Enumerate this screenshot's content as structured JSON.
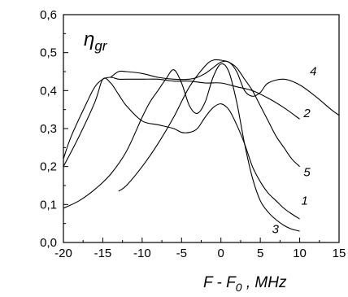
{
  "chart_data": {
    "type": "line",
    "title": "",
    "ylabel": "η_gr",
    "ylabel_parts": {
      "base": "η",
      "sub": "gr"
    },
    "xlabel": "F - F0 , MHz",
    "xlabel_parts": {
      "pre": "F - F",
      "sub": "0",
      "post": " , MHz"
    },
    "xlim": [
      -20,
      15
    ],
    "ylim": [
      0.0,
      0.6
    ],
    "x_ticks": [
      -20,
      -15,
      -10,
      -5,
      0,
      5,
      10,
      15
    ],
    "y_ticks": [
      0.0,
      0.1,
      0.2,
      0.3,
      0.4,
      0.5,
      0.6
    ],
    "x_tick_labels": [
      "-20",
      "-15",
      "-10",
      "-5",
      "0",
      "5",
      "10",
      "15"
    ],
    "y_tick_labels": [
      "0,0",
      "0,1",
      "0,2",
      "0,3",
      "0,4",
      "0,5",
      "0,6"
    ],
    "grid": false,
    "series": [
      {
        "label": "1",
        "label_at": [
          10.2,
          0.1
        ],
        "x": [
          -20,
          -18,
          -16,
          -15,
          -14,
          -13,
          -12,
          -10,
          -8,
          -6,
          -5,
          -4,
          -3,
          -2,
          -1,
          0,
          1,
          2,
          3,
          4,
          5,
          6,
          7,
          8,
          9,
          10
        ],
        "values": [
          0.2,
          0.28,
          0.37,
          0.43,
          0.42,
          0.39,
          0.36,
          0.32,
          0.31,
          0.3,
          0.29,
          0.29,
          0.3,
          0.33,
          0.355,
          0.365,
          0.35,
          0.31,
          0.26,
          0.2,
          0.16,
          0.13,
          0.11,
          0.09,
          0.075,
          0.062
        ]
      },
      {
        "label": "2",
        "label_at": [
          10.5,
          0.33
        ],
        "x": [
          -20,
          -19,
          -17,
          -16,
          -15,
          -14,
          -13,
          -12,
          -10,
          -8,
          -6,
          -4,
          -2,
          0,
          2,
          4,
          6,
          8,
          10
        ],
        "values": [
          0.22,
          0.28,
          0.37,
          0.41,
          0.43,
          0.435,
          0.43,
          0.43,
          0.43,
          0.43,
          0.425,
          0.425,
          0.42,
          0.42,
          0.41,
          0.4,
          0.38,
          0.355,
          0.325
        ]
      },
      {
        "label": "3",
        "label_at": [
          6.5,
          0.025
        ],
        "x": [
          -20,
          -18,
          -16,
          -14,
          -12,
          -10,
          -9,
          -8,
          -7,
          -6,
          -5,
          -4,
          -3,
          -2,
          -1,
          0,
          1,
          2,
          3,
          4,
          5,
          6,
          7,
          8,
          9,
          10
        ],
        "values": [
          0.09,
          0.11,
          0.14,
          0.18,
          0.24,
          0.33,
          0.37,
          0.4,
          0.43,
          0.455,
          0.42,
          0.36,
          0.34,
          0.37,
          0.435,
          0.47,
          0.45,
          0.37,
          0.26,
          0.17,
          0.11,
          0.08,
          0.06,
          0.045,
          0.035,
          0.03
        ]
      },
      {
        "label": "4",
        "label_at": [
          11.3,
          0.44
        ],
        "x": [
          -14,
          -13,
          -12,
          -10,
          -8,
          -6,
          -4,
          -3,
          -2,
          -1,
          0,
          1,
          2,
          3,
          4,
          5,
          6,
          8,
          10,
          12,
          14,
          15
        ],
        "values": [
          0.435,
          0.45,
          0.45,
          0.445,
          0.435,
          0.43,
          0.43,
          0.435,
          0.445,
          0.46,
          0.475,
          0.475,
          0.45,
          0.4,
          0.385,
          0.395,
          0.42,
          0.43,
          0.415,
          0.385,
          0.35,
          0.335
        ]
      },
      {
        "label": "5",
        "label_at": [
          10.5,
          0.175
        ],
        "x": [
          -13,
          -12,
          -10,
          -8,
          -6,
          -4,
          -2,
          -1,
          0,
          1,
          2,
          3,
          4,
          5,
          6,
          7,
          8,
          9,
          10
        ],
        "values": [
          0.135,
          0.15,
          0.2,
          0.26,
          0.33,
          0.41,
          0.465,
          0.48,
          0.48,
          0.475,
          0.46,
          0.43,
          0.4,
          0.36,
          0.32,
          0.28,
          0.25,
          0.22,
          0.2
        ]
      }
    ]
  }
}
